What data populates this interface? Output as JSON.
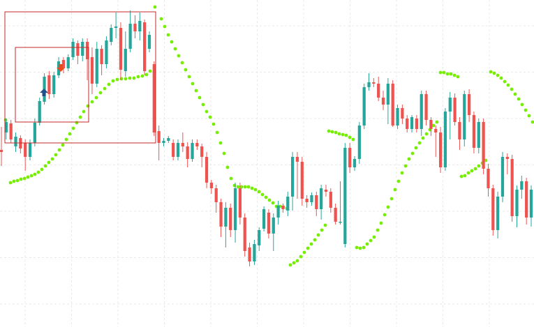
{
  "colors": {
    "bull": "#26a69a",
    "bear": "#ef5350",
    "sar": "#76ee00",
    "grid": "#e9e9e9",
    "box": "#c62828",
    "buy_arrow": "#1f4e8c",
    "sell_arrow": "#e84b1a",
    "background": "#ffffff"
  },
  "chart_data": {
    "type": "candlestick",
    "title": "",
    "xlabel": "",
    "ylabel": "",
    "grid": true,
    "ylim": [
      0,
      469
    ],
    "x_count": 125,
    "candles": [
      [
        215,
        218,
        182,
        238
      ],
      [
        190,
        175,
        170,
        200
      ],
      [
        177,
        200,
        172,
        205
      ],
      [
        210,
        196,
        190,
        218
      ],
      [
        198,
        213,
        194,
        220
      ],
      [
        205,
        225,
        200,
        245
      ],
      [
        225,
        205,
        200,
        230
      ],
      [
        205,
        176,
        170,
        210
      ],
      [
        176,
        145,
        140,
        180
      ],
      [
        146,
        110,
        105,
        150
      ],
      [
        108,
        135,
        102,
        142
      ],
      [
        135,
        108,
        103,
        140
      ],
      [
        108,
        88,
        82,
        112
      ],
      [
        86,
        98,
        82,
        105
      ],
      [
        98,
        82,
        78,
        102
      ],
      [
        82,
        60,
        55,
        86
      ],
      [
        62,
        80,
        58,
        92
      ],
      [
        80,
        60,
        55,
        88
      ],
      [
        60,
        85,
        55,
        115
      ],
      [
        82,
        120,
        68,
        135
      ],
      [
        120,
        70,
        60,
        125
      ],
      [
        70,
        92,
        65,
        108
      ],
      [
        92,
        58,
        52,
        98
      ],
      [
        60,
        40,
        35,
        65
      ],
      [
        40,
        38,
        18,
        55
      ],
      [
        40,
        100,
        32,
        115
      ],
      [
        102,
        70,
        45,
        110
      ],
      [
        70,
        34,
        15,
        75
      ],
      [
        34,
        45,
        22,
        55
      ],
      [
        45,
        30,
        18,
        58
      ],
      [
        32,
        102,
        28,
        108
      ],
      [
        70,
        50,
        45,
        75
      ],
      [
        92,
        190,
        88,
        195
      ],
      [
        188,
        205,
        180,
        230
      ],
      [
        205,
        202,
        198,
        210
      ],
      [
        202,
        198,
        195,
        205
      ],
      [
        205,
        225,
        200,
        230
      ],
      [
        225,
        205,
        200,
        230
      ],
      [
        205,
        210,
        190,
        218
      ],
      [
        210,
        228,
        204,
        240
      ],
      [
        228,
        205,
        200,
        232
      ],
      [
        205,
        210,
        200,
        215
      ],
      [
        210,
        225,
        206,
        240
      ],
      [
        225,
        262,
        218,
        270
      ],
      [
        262,
        270,
        258,
        278
      ],
      [
        270,
        290,
        265,
        305
      ],
      [
        290,
        325,
        285,
        340
      ],
      [
        325,
        298,
        290,
        355
      ],
      [
        298,
        330,
        292,
        340
      ],
      [
        330,
        270,
        262,
        348
      ],
      [
        270,
        312,
        262,
        322
      ],
      [
        312,
        360,
        306,
        368
      ],
      [
        355,
        375,
        348,
        382
      ],
      [
        375,
        350,
        344,
        380
      ],
      [
        352,
        330,
        326,
        360
      ],
      [
        328,
        300,
        296,
        332
      ],
      [
        305,
        335,
        300,
        342
      ],
      [
        335,
        312,
        306,
        360
      ],
      [
        312,
        295,
        288,
        322
      ],
      [
        295,
        300,
        292,
        305
      ],
      [
        302,
        282,
        275,
        310
      ],
      [
        282,
        225,
        218,
        302
      ],
      [
        225,
        232,
        218,
        285
      ],
      [
        232,
        285,
        225,
        295
      ],
      [
        285,
        290,
        280,
        298
      ],
      [
        290,
        280,
        276,
        295
      ],
      [
        280,
        300,
        275,
        310
      ],
      [
        300,
        270,
        265,
        315
      ],
      [
        272,
        275,
        265,
        282
      ],
      [
        275,
        298,
        270,
        305
      ],
      [
        298,
        318,
        292,
        322
      ],
      [
        318,
        318,
        260,
        322
      ],
      [
        350,
        212,
        205,
        355
      ],
      [
        212,
        240,
        205,
        248
      ],
      [
        240,
        228,
        224,
        245
      ],
      [
        228,
        180,
        175,
        235
      ],
      [
        180,
        125,
        120,
        185
      ],
      [
        125,
        118,
        105,
        130
      ],
      [
        118,
        120,
        112,
        125
      ],
      [
        120,
        140,
        110,
        145
      ],
      [
        140,
        150,
        130,
        158
      ],
      [
        150,
        120,
        112,
        178
      ],
      [
        120,
        180,
        115,
        182
      ],
      [
        180,
        155,
        150,
        185
      ],
      [
        155,
        170,
        150,
        178
      ],
      [
        170,
        185,
        165,
        190
      ],
      [
        185,
        168,
        165,
        190
      ],
      [
        170,
        185,
        165,
        190
      ],
      [
        185,
        135,
        130,
        195
      ],
      [
        135,
        172,
        130,
        180
      ],
      [
        172,
        185,
        168,
        195
      ],
      [
        185,
        190,
        180,
        225
      ],
      [
        190,
        240,
        182,
        248
      ],
      [
        240,
        160,
        155,
        245
      ],
      [
        160,
        140,
        132,
        200
      ],
      [
        140,
        175,
        134,
        180
      ],
      [
        175,
        200,
        168,
        215
      ],
      [
        200,
        135,
        130,
        210
      ],
      [
        135,
        165,
        128,
        175
      ],
      [
        165,
        212,
        160,
        220
      ],
      [
        212,
        175,
        170,
        220
      ],
      [
        175,
        242,
        170,
        250
      ],
      [
        242,
        270,
        235,
        282
      ],
      [
        270,
        330,
        265,
        338
      ],
      [
        330,
        282,
        275,
        342
      ],
      [
        282,
        225,
        218,
        290
      ],
      [
        225,
        228,
        220,
        250
      ],
      [
        228,
        310,
        222,
        318
      ],
      [
        310,
        272,
        266,
        326
      ],
      [
        272,
        260,
        252,
        285
      ],
      [
        260,
        312,
        255,
        322
      ],
      [
        312,
        272,
        266,
        325
      ]
    ],
    "sar_points": [
      [
        8,
        172
      ],
      [
        15,
        262
      ],
      [
        20,
        260
      ],
      [
        25,
        259
      ],
      [
        30,
        257
      ],
      [
        35,
        256
      ],
      [
        40,
        254
      ],
      [
        45,
        252
      ],
      [
        50,
        250
      ],
      [
        55,
        247
      ],
      [
        60,
        243
      ],
      [
        65,
        238
      ],
      [
        70,
        233
      ],
      [
        75,
        228
      ],
      [
        80,
        222
      ],
      [
        85,
        215
      ],
      [
        90,
        208
      ],
      [
        95,
        200
      ],
      [
        100,
        192
      ],
      [
        105,
        184
      ],
      [
        110,
        176
      ],
      [
        115,
        168
      ],
      [
        120,
        160
      ],
      [
        126,
        152
      ],
      [
        132,
        146
      ],
      [
        138,
        140
      ],
      [
        144,
        133
      ],
      [
        150,
        127
      ],
      [
        156,
        121
      ],
      [
        162,
        116
      ],
      [
        168,
        114
      ],
      [
        174,
        113
      ],
      [
        180,
        113
      ],
      [
        186,
        112
      ],
      [
        192,
        112
      ],
      [
        198,
        110
      ],
      [
        204,
        109
      ],
      [
        210,
        107
      ],
      [
        215,
        102
      ],
      [
        222,
        10
      ],
      [
        231,
        27
      ],
      [
        236,
        38
      ],
      [
        241,
        50
      ],
      [
        246,
        60
      ],
      [
        251,
        70
      ],
      [
        256,
        80
      ],
      [
        261,
        90
      ],
      [
        266,
        100
      ],
      [
        271,
        110
      ],
      [
        276,
        120
      ],
      [
        281,
        130
      ],
      [
        286,
        140
      ],
      [
        291,
        150
      ],
      [
        296,
        160
      ],
      [
        301,
        168
      ],
      [
        306,
        178
      ],
      [
        311,
        190
      ],
      [
        316,
        205
      ],
      [
        321,
        220
      ],
      [
        326,
        240
      ],
      [
        331,
        256
      ],
      [
        336,
        266
      ],
      [
        341,
        268
      ],
      [
        346,
        268
      ],
      [
        351,
        268
      ],
      [
        356,
        268
      ],
      [
        361,
        270
      ],
      [
        366,
        272
      ],
      [
        371,
        275
      ],
      [
        376,
        279
      ],
      [
        381,
        283
      ],
      [
        386,
        287
      ],
      [
        391,
        291
      ],
      [
        396,
        296
      ],
      [
        401,
        296
      ],
      [
        406,
        297
      ],
      [
        411,
        299
      ],
      [
        416,
        380
      ],
      [
        421,
        377
      ],
      [
        426,
        374
      ],
      [
        431,
        368
      ],
      [
        436,
        362
      ],
      [
        441,
        356
      ],
      [
        446,
        350
      ],
      [
        451,
        344
      ],
      [
        456,
        337
      ],
      [
        461,
        330
      ],
      [
        466,
        323
      ],
      [
        471,
        188
      ],
      [
        476,
        189
      ],
      [
        481,
        190
      ],
      [
        486,
        192
      ],
      [
        491,
        193
      ],
      [
        496,
        194
      ],
      [
        501,
        197
      ],
      [
        506,
        200
      ],
      [
        511,
        355
      ],
      [
        516,
        356
      ],
      [
        521,
        355
      ],
      [
        526,
        350
      ],
      [
        531,
        345
      ],
      [
        536,
        340
      ],
      [
        541,
        330
      ],
      [
        546,
        320
      ],
      [
        551,
        308
      ],
      [
        556,
        297
      ],
      [
        561,
        285
      ],
      [
        566,
        272
      ],
      [
        571,
        260
      ],
      [
        576,
        248
      ],
      [
        581,
        238
      ],
      [
        586,
        228
      ],
      [
        591,
        220
      ],
      [
        596,
        212
      ],
      [
        601,
        205
      ],
      [
        606,
        198
      ],
      [
        611,
        192
      ],
      [
        616,
        186
      ],
      [
        621,
        180
      ],
      [
        626,
        175
      ],
      [
        631,
        104
      ],
      [
        636,
        104
      ],
      [
        641,
        106
      ],
      [
        646,
        106
      ],
      [
        651,
        108
      ],
      [
        656,
        110
      ],
      [
        661,
        253
      ],
      [
        666,
        252
      ],
      [
        671,
        248
      ],
      [
        676,
        245
      ],
      [
        681,
        242
      ],
      [
        686,
        238
      ],
      [
        691,
        234
      ],
      [
        696,
        230
      ],
      [
        703,
        103
      ],
      [
        708,
        105
      ],
      [
        713,
        108
      ],
      [
        718,
        112
      ],
      [
        723,
        117
      ],
      [
        728,
        122
      ],
      [
        733,
        128
      ],
      [
        738,
        135
      ],
      [
        743,
        142
      ],
      [
        748,
        150
      ],
      [
        753,
        158
      ],
      [
        758,
        166
      ],
      [
        763,
        175
      ]
    ],
    "annotations": {
      "buy_signal": [
        63,
        133
      ],
      "sell_signal": [
        87,
        97
      ],
      "zone_boxes": [
        {
          "x1": 7,
          "y1": 17,
          "x2": 223,
          "y2": 205
        },
        {
          "x1": 22,
          "y1": 68,
          "x2": 127,
          "y2": 175
        }
      ]
    }
  }
}
